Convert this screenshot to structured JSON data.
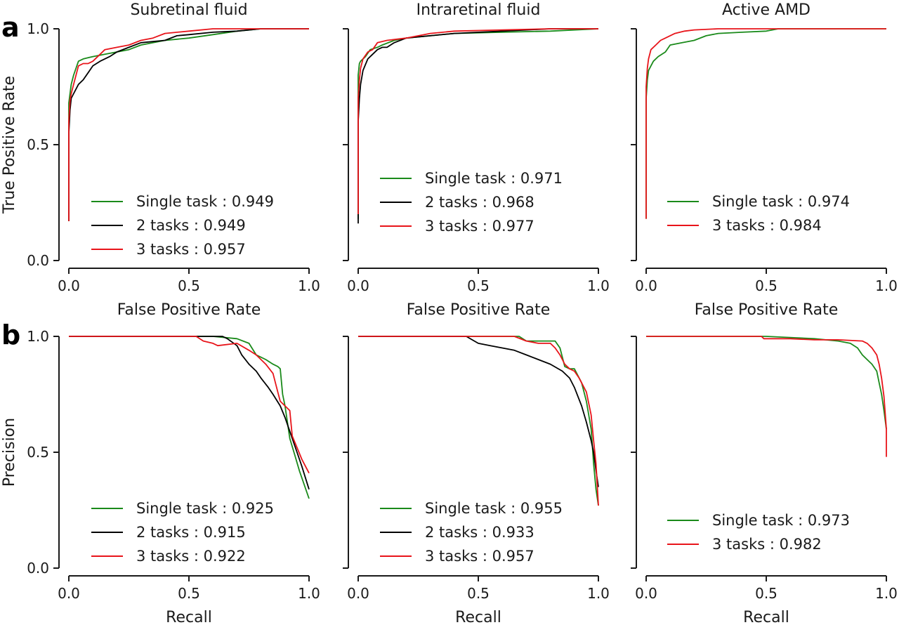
{
  "colors": {
    "green": "#1a8a1a",
    "black": "#000000",
    "red": "#e8141a"
  },
  "row_labels": [
    "a",
    "b"
  ],
  "chart_data": [
    {
      "type": "line",
      "row": 0,
      "col": 0,
      "title": "Subretinal fluid",
      "xlabel": "False Positive Rate",
      "ylabel": "True Positive Rate",
      "xlim": [
        0,
        1
      ],
      "ylim": [
        0,
        1
      ],
      "xticks": [
        "0.0",
        "0.5",
        "1.0"
      ],
      "yticks": [
        "0.0",
        "0.5",
        "1.0"
      ],
      "series": [
        {
          "name": "Single task : 0.949",
          "color": "green",
          "x": [
            0,
            0,
            0.005,
            0.01,
            0.02,
            0.04,
            0.06,
            0.1,
            0.15,
            0.2,
            0.25,
            0.3,
            0.4,
            0.5,
            0.6,
            0.7,
            0.8,
            1.0
          ],
          "y": [
            0.17,
            0.68,
            0.72,
            0.76,
            0.8,
            0.86,
            0.87,
            0.88,
            0.89,
            0.9,
            0.91,
            0.93,
            0.95,
            0.96,
            0.975,
            0.99,
            1.0,
            1.0
          ]
        },
        {
          "name": "2 tasks : 0.949",
          "color": "black",
          "x": [
            0,
            0,
            0.005,
            0.01,
            0.02,
            0.04,
            0.06,
            0.08,
            0.1,
            0.13,
            0.17,
            0.2,
            0.25,
            0.3,
            0.4,
            0.45,
            0.5,
            0.6,
            0.7,
            0.8,
            1.0
          ],
          "y": [
            0.17,
            0.55,
            0.65,
            0.7,
            0.72,
            0.76,
            0.78,
            0.81,
            0.84,
            0.86,
            0.88,
            0.9,
            0.92,
            0.94,
            0.95,
            0.97,
            0.975,
            0.985,
            0.99,
            1.0,
            1.0
          ]
        },
        {
          "name": "3 tasks : 0.957",
          "color": "red",
          "x": [
            0,
            0,
            0.005,
            0.01,
            0.02,
            0.04,
            0.06,
            0.08,
            0.1,
            0.13,
            0.15,
            0.2,
            0.25,
            0.3,
            0.35,
            0.4,
            0.5,
            0.6,
            0.7,
            1.0
          ],
          "y": [
            0.17,
            0.6,
            0.69,
            0.72,
            0.76,
            0.84,
            0.85,
            0.85,
            0.86,
            0.89,
            0.91,
            0.92,
            0.93,
            0.95,
            0.96,
            0.98,
            0.99,
            1.0,
            1.0,
            1.0
          ]
        }
      ]
    },
    {
      "type": "line",
      "row": 0,
      "col": 1,
      "title": "Intraretinal fluid",
      "xlabel": "False Positive Rate",
      "ylabel": "",
      "xlim": [
        0,
        1
      ],
      "ylim": [
        0,
        1
      ],
      "xticks": [
        "0.0",
        "0.5",
        "1.0"
      ],
      "yticks": [],
      "series": [
        {
          "name": "Single task : 0.971",
          "color": "green",
          "x": [
            0,
            0,
            0.005,
            0.01,
            0.03,
            0.05,
            0.08,
            0.1,
            0.15,
            0.2,
            0.3,
            0.4,
            0.6,
            0.8,
            1.0
          ],
          "y": [
            0.18,
            0.8,
            0.85,
            0.86,
            0.88,
            0.91,
            0.92,
            0.93,
            0.95,
            0.96,
            0.97,
            0.98,
            0.985,
            0.99,
            1.0
          ]
        },
        {
          "name": "2 tasks : 0.968",
          "color": "black",
          "x": [
            0,
            0,
            0.005,
            0.01,
            0.02,
            0.04,
            0.06,
            0.08,
            0.1,
            0.12,
            0.15,
            0.2,
            0.3,
            0.4,
            0.6,
            0.8,
            1.0
          ],
          "y": [
            0.16,
            0.6,
            0.7,
            0.76,
            0.82,
            0.87,
            0.89,
            0.91,
            0.92,
            0.92,
            0.94,
            0.96,
            0.97,
            0.98,
            0.99,
            1.0,
            1.0
          ]
        },
        {
          "name": "3 tasks : 0.977",
          "color": "red",
          "x": [
            0,
            0,
            0.005,
            0.01,
            0.02,
            0.04,
            0.06,
            0.08,
            0.12,
            0.2,
            0.3,
            0.4,
            0.6,
            0.8,
            1.0
          ],
          "y": [
            0.2,
            0.7,
            0.78,
            0.83,
            0.87,
            0.9,
            0.91,
            0.94,
            0.95,
            0.96,
            0.98,
            0.99,
            0.995,
            1.0,
            1.0
          ]
        }
      ]
    },
    {
      "type": "line",
      "row": 0,
      "col": 2,
      "title": "Active AMD",
      "xlabel": "False Positive Rate",
      "ylabel": "",
      "xlim": [
        0,
        1
      ],
      "ylim": [
        0,
        1
      ],
      "xticks": [
        "0.0",
        "0.5",
        "1.0"
      ],
      "yticks": [],
      "series": [
        {
          "name": "Single task : 0.974",
          "color": "green",
          "x": [
            0,
            0,
            0.005,
            0.01,
            0.02,
            0.03,
            0.05,
            0.08,
            0.1,
            0.15,
            0.2,
            0.25,
            0.3,
            0.4,
            0.5,
            0.55,
            1.0
          ],
          "y": [
            0.18,
            0.7,
            0.78,
            0.82,
            0.84,
            0.86,
            0.88,
            0.9,
            0.93,
            0.94,
            0.95,
            0.97,
            0.98,
            0.985,
            0.99,
            1.0,
            1.0
          ]
        },
        {
          "name": "3 tasks : 0.984",
          "color": "red",
          "x": [
            0,
            0,
            0.005,
            0.01,
            0.02,
            0.04,
            0.06,
            0.08,
            0.12,
            0.16,
            0.2,
            0.3,
            0.4,
            1.0
          ],
          "y": [
            0.18,
            0.75,
            0.83,
            0.87,
            0.91,
            0.93,
            0.95,
            0.96,
            0.98,
            0.99,
            0.995,
            1.0,
            1.0,
            1.0
          ]
        }
      ]
    },
    {
      "type": "line",
      "row": 1,
      "col": 0,
      "title": "",
      "xlabel": "Recall",
      "ylabel": "Precision",
      "xlim": [
        0,
        1
      ],
      "ylim": [
        0,
        1
      ],
      "xticks": [
        "0.0",
        "0.5",
        "1.0"
      ],
      "yticks": [
        "0.0",
        "0.5",
        "1.0"
      ],
      "series": [
        {
          "name": "Single task : 0.925",
          "color": "green",
          "x": [
            0,
            0.6,
            0.7,
            0.75,
            0.78,
            0.8,
            0.82,
            0.85,
            0.87,
            0.88,
            0.89,
            0.9,
            0.92,
            0.94,
            0.96,
            1.0
          ],
          "y": [
            1.0,
            1.0,
            0.99,
            0.97,
            0.92,
            0.91,
            0.9,
            0.88,
            0.87,
            0.86,
            0.75,
            0.7,
            0.56,
            0.49,
            0.42,
            0.3
          ]
        },
        {
          "name": "2 tasks : 0.915",
          "color": "black",
          "x": [
            0,
            0.64,
            0.66,
            0.7,
            0.72,
            0.75,
            0.78,
            0.8,
            0.83,
            0.85,
            0.88,
            0.9,
            0.93,
            0.95,
            0.97,
            1.0
          ],
          "y": [
            1.0,
            1.0,
            0.99,
            0.96,
            0.92,
            0.88,
            0.85,
            0.82,
            0.78,
            0.75,
            0.7,
            0.65,
            0.56,
            0.5,
            0.44,
            0.34
          ]
        },
        {
          "name": "3 tasks : 0.922",
          "color": "red",
          "x": [
            0,
            0.53,
            0.56,
            0.6,
            0.62,
            0.7,
            0.75,
            0.78,
            0.8,
            0.82,
            0.85,
            0.87,
            0.88,
            0.9,
            0.92,
            0.93,
            0.95,
            0.97,
            1.0
          ],
          "y": [
            1.0,
            1.0,
            0.98,
            0.97,
            0.96,
            0.97,
            0.94,
            0.92,
            0.9,
            0.88,
            0.84,
            0.76,
            0.72,
            0.7,
            0.68,
            0.57,
            0.52,
            0.47,
            0.41
          ]
        }
      ]
    },
    {
      "type": "line",
      "row": 1,
      "col": 1,
      "title": "",
      "xlabel": "Recall",
      "ylabel": "",
      "xlim": [
        0,
        1
      ],
      "ylim": [
        0,
        1
      ],
      "xticks": [
        "0.0",
        "0.5",
        "1.0"
      ],
      "yticks": [],
      "series": [
        {
          "name": "Single task : 0.955",
          "color": "green",
          "x": [
            0,
            0.67,
            0.7,
            0.72,
            0.75,
            0.8,
            0.82,
            0.84,
            0.85,
            0.86,
            0.88,
            0.9,
            0.93,
            0.95,
            0.97,
            0.98,
            0.99,
            1.0
          ],
          "y": [
            1.0,
            1.0,
            0.98,
            0.98,
            0.98,
            0.98,
            0.98,
            0.95,
            0.91,
            0.87,
            0.86,
            0.86,
            0.8,
            0.72,
            0.6,
            0.45,
            0.34,
            0.27
          ]
        },
        {
          "name": "2 tasks : 0.933",
          "color": "black",
          "x": [
            0,
            0.45,
            0.5,
            0.55,
            0.6,
            0.65,
            0.7,
            0.75,
            0.8,
            0.85,
            0.88,
            0.9,
            0.93,
            0.95,
            0.97,
            0.98,
            0.99,
            1.0
          ],
          "y": [
            1.0,
            1.0,
            0.97,
            0.96,
            0.95,
            0.94,
            0.92,
            0.9,
            0.88,
            0.85,
            0.82,
            0.78,
            0.7,
            0.63,
            0.55,
            0.5,
            0.42,
            0.35
          ]
        },
        {
          "name": "3 tasks : 0.957",
          "color": "red",
          "x": [
            0,
            0.65,
            0.7,
            0.75,
            0.8,
            0.82,
            0.84,
            0.86,
            0.88,
            0.9,
            0.92,
            0.95,
            0.97,
            0.98,
            0.99,
            1.0
          ],
          "y": [
            1.0,
            1.0,
            0.98,
            0.97,
            0.97,
            0.95,
            0.92,
            0.88,
            0.86,
            0.85,
            0.82,
            0.76,
            0.66,
            0.55,
            0.45,
            0.27
          ]
        }
      ]
    },
    {
      "type": "line",
      "row": 1,
      "col": 2,
      "title": "",
      "xlabel": "Recall",
      "ylabel": "",
      "xlim": [
        0,
        1
      ],
      "ylim": [
        0,
        1
      ],
      "xticks": [
        "0.0",
        "0.5",
        "1.0"
      ],
      "yticks": [],
      "series": [
        {
          "name": "Single task : 0.973",
          "color": "green",
          "x": [
            0,
            0.5,
            0.6,
            0.7,
            0.8,
            0.85,
            0.88,
            0.9,
            0.92,
            0.94,
            0.96,
            0.97,
            0.98,
            0.99,
            1.0
          ],
          "y": [
            1.0,
            1.0,
            0.995,
            0.99,
            0.98,
            0.97,
            0.95,
            0.92,
            0.9,
            0.88,
            0.85,
            0.8,
            0.75,
            0.68,
            0.6
          ]
        },
        {
          "name": "3 tasks : 0.982",
          "color": "red",
          "x": [
            0,
            0.48,
            0.49,
            0.6,
            0.7,
            0.8,
            0.9,
            0.92,
            0.94,
            0.96,
            0.97,
            0.98,
            0.99,
            1.0,
            1.0
          ],
          "y": [
            1.0,
            1.0,
            0.99,
            0.99,
            0.985,
            0.985,
            0.98,
            0.97,
            0.95,
            0.92,
            0.88,
            0.82,
            0.74,
            0.6,
            0.48
          ]
        }
      ]
    }
  ]
}
